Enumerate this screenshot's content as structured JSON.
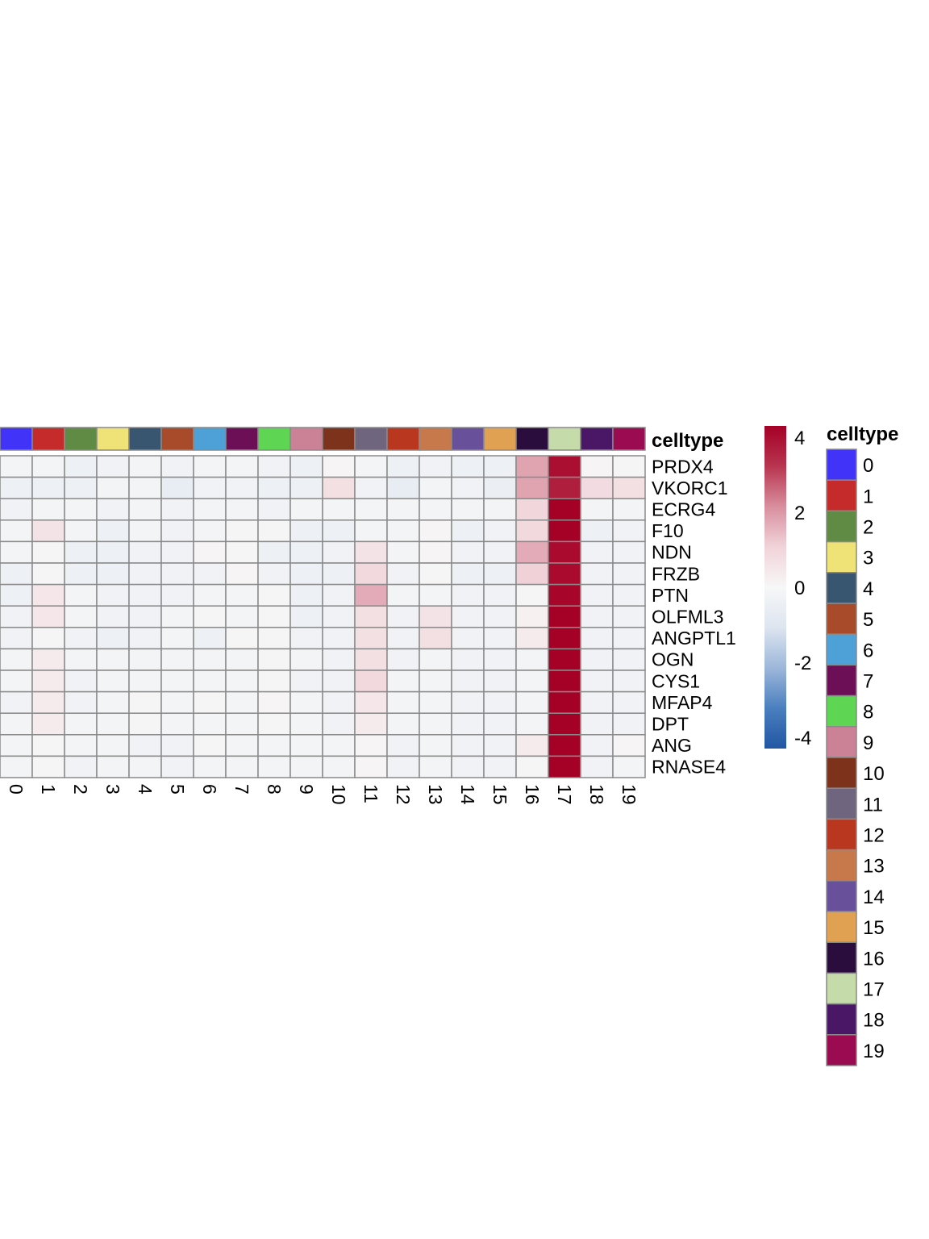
{
  "chart_data": {
    "type": "heatmap",
    "annotation_label": "celltype",
    "columns": [
      "0",
      "1",
      "2",
      "3",
      "4",
      "5",
      "6",
      "7",
      "8",
      "9",
      "10",
      "11",
      "12",
      "13",
      "14",
      "15",
      "16",
      "17",
      "18",
      "19"
    ],
    "rows": [
      "PRDX4",
      "VKORC1",
      "ECRG4",
      "F10",
      "NDN",
      "FRZB",
      "PTN",
      "OLFML3",
      "ANGPTL1",
      "OGN",
      "CYS1",
      "MFAP4",
      "DPT",
      "ANG",
      "RNASE4"
    ],
    "values": [
      [
        -0.2,
        -0.2,
        -0.4,
        -0.3,
        -0.2,
        -0.3,
        -0.2,
        -0.2,
        -0.3,
        -0.4,
        0.1,
        -0.2,
        -0.4,
        -0.3,
        -0.4,
        -0.4,
        1.8,
        4.0,
        0.1,
        -0.1
      ],
      [
        -0.4,
        -0.4,
        -0.4,
        -0.2,
        -0.2,
        -0.6,
        -0.3,
        -0.3,
        -0.4,
        -0.4,
        0.7,
        -0.3,
        -0.6,
        -0.2,
        -0.3,
        -0.5,
        1.8,
        3.7,
        0.8,
        0.7
      ],
      [
        -0.3,
        -0.2,
        -0.2,
        -0.3,
        -0.2,
        -0.3,
        -0.2,
        -0.2,
        -0.3,
        -0.2,
        -0.2,
        -0.2,
        -0.2,
        -0.2,
        -0.2,
        -0.2,
        1.0,
        4.3,
        -0.2,
        -0.2
      ],
      [
        -0.2,
        0.6,
        -0.2,
        -0.4,
        -0.2,
        -0.3,
        -0.2,
        -0.1,
        -0.1,
        -0.4,
        -0.4,
        -0.2,
        -0.2,
        0.1,
        -0.4,
        -0.3,
        0.9,
        4.3,
        -0.4,
        -0.3
      ],
      [
        -0.2,
        -0.1,
        -0.4,
        -0.4,
        -0.3,
        -0.3,
        0.1,
        -0.1,
        -0.4,
        -0.4,
        -0.3,
        0.6,
        -0.2,
        0.1,
        -0.3,
        -0.3,
        1.7,
        4.1,
        -0.3,
        -0.3
      ],
      [
        -0.4,
        -0.1,
        -0.4,
        -0.4,
        -0.3,
        -0.3,
        -0.3,
        0.1,
        -0.3,
        -0.4,
        -0.4,
        0.9,
        -0.3,
        -0.1,
        -0.4,
        -0.4,
        1.1,
        4.1,
        -0.3,
        -0.3
      ],
      [
        -0.4,
        0.5,
        -0.2,
        -0.3,
        -0.3,
        -0.3,
        -0.2,
        -0.2,
        -0.1,
        -0.4,
        -0.3,
        1.7,
        -0.2,
        -0.2,
        -0.3,
        -0.3,
        -0.1,
        4.2,
        -0.3,
        -0.3
      ],
      [
        -0.3,
        0.5,
        -0.2,
        -0.3,
        -0.3,
        -0.2,
        -0.1,
        -0.2,
        -0.1,
        -0.4,
        -0.3,
        0.7,
        -0.3,
        0.6,
        -0.3,
        -0.3,
        0.2,
        4.3,
        -0.3,
        -0.3
      ],
      [
        -0.3,
        -0.1,
        -0.3,
        -0.4,
        -0.3,
        -0.2,
        -0.4,
        -0.1,
        -0.1,
        -0.3,
        -0.3,
        0.7,
        -0.3,
        0.7,
        -0.3,
        -0.3,
        0.4,
        4.3,
        -0.3,
        -0.3
      ],
      [
        -0.2,
        0.4,
        -0.2,
        -0.2,
        -0.2,
        -0.2,
        -0.2,
        -0.2,
        -0.1,
        -0.2,
        -0.3,
        0.7,
        -0.3,
        -0.2,
        -0.3,
        -0.3,
        -0.2,
        4.3,
        -0.3,
        -0.3
      ],
      [
        -0.2,
        0.4,
        -0.3,
        -0.2,
        -0.2,
        -0.2,
        -0.2,
        -0.2,
        -0.1,
        -0.3,
        -0.3,
        0.9,
        -0.2,
        -0.2,
        -0.3,
        -0.3,
        -0.2,
        4.3,
        -0.3,
        -0.3
      ],
      [
        -0.3,
        0.4,
        -0.3,
        -0.2,
        -0.1,
        -0.2,
        -0.1,
        -0.2,
        0.1,
        -0.2,
        -0.3,
        0.5,
        -0.2,
        -0.2,
        -0.3,
        -0.3,
        -0.2,
        4.3,
        -0.3,
        -0.3
      ],
      [
        -0.2,
        0.4,
        -0.2,
        -0.2,
        -0.1,
        -0.2,
        -0.2,
        -0.2,
        -0.1,
        -0.2,
        -0.3,
        0.4,
        -0.2,
        -0.2,
        -0.3,
        -0.3,
        -0.2,
        4.3,
        -0.3,
        -0.3
      ],
      [
        -0.2,
        -0.1,
        -0.2,
        -0.2,
        -0.3,
        -0.3,
        -0.1,
        -0.2,
        -0.2,
        -0.2,
        -0.2,
        0.1,
        -0.3,
        -0.2,
        -0.3,
        -0.3,
        0.4,
        4.3,
        -0.3,
        0.1
      ],
      [
        -0.2,
        -0.1,
        -0.3,
        -0.2,
        -0.2,
        -0.3,
        -0.2,
        -0.2,
        -0.2,
        -0.2,
        -0.2,
        0.1,
        -0.3,
        -0.2,
        -0.3,
        -0.3,
        -0.1,
        4.3,
        -0.3,
        -0.2
      ]
    ],
    "color_scale": {
      "min": -4.3,
      "max": 4.3,
      "stops": [
        "#2156a4",
        "#4a7fbf",
        "#9db7da",
        "#dde5f0",
        "#f7f7f7",
        "#f1d3d9",
        "#d88e9e",
        "#b83550",
        "#a50026"
      ],
      "ticks": [
        4,
        2,
        0,
        -2,
        -4
      ]
    },
    "celltype_colors": {
      "0": "#4133f8",
      "1": "#c62b2b",
      "2": "#5f8b45",
      "3": "#efe277",
      "4": "#385670",
      "5": "#a84b2a",
      "6": "#4ea1d6",
      "7": "#6c0f57",
      "8": "#5ed653",
      "9": "#cb8196",
      "10": "#7d331b",
      "11": "#6f657e",
      "12": "#b9371e",
      "13": "#c8794b",
      "14": "#68509b",
      "15": "#e0a252",
      "16": "#2a0d3c",
      "17": "#c5dbaa",
      "18": "#4a1767",
      "19": "#9b0b51"
    },
    "legend_title": "celltype",
    "legend_entries": [
      "0",
      "1",
      "2",
      "3",
      "4",
      "5",
      "6",
      "7",
      "8",
      "9",
      "10",
      "11",
      "12",
      "13",
      "14",
      "15",
      "16",
      "17",
      "18",
      "19"
    ],
    "title": "",
    "xlabel": "",
    "ylabel": ""
  }
}
